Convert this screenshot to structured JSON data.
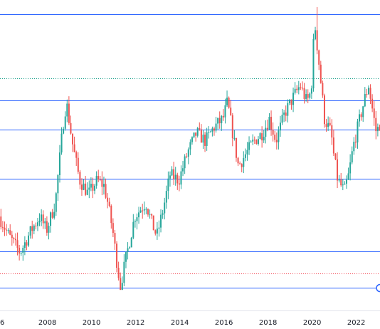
{
  "chart_data": {
    "type": "candlestick",
    "x_unit": "year",
    "x_ticks": [
      "2008",
      "2010",
      "2012",
      "2014",
      "2016",
      "2018",
      "2020",
      "2022"
    ],
    "x_edge_label": "6",
    "x_range": [
      2005.85,
      2023.2
    ],
    "y_range": [
      0,
      100
    ],
    "y_axis_labels_shown": false,
    "grid": false,
    "legend": "none",
    "colors": {
      "up": "#26a69a",
      "down": "#ef5350",
      "level": "#2962ff",
      "dotted_level": "#089981",
      "dotted_red": "#f23645"
    },
    "horizontal_levels": [
      {
        "value": 97.5,
        "style": "solid",
        "color": "#2962ff"
      },
      {
        "value": 74.5,
        "style": "dotted",
        "color": "#089981"
      },
      {
        "value": 66.5,
        "style": "solid",
        "color": "#2962ff"
      },
      {
        "value": 56.0,
        "style": "solid",
        "color": "#2962ff"
      },
      {
        "value": 38.5,
        "style": "solid",
        "color": "#2962ff"
      },
      {
        "value": 12.5,
        "style": "solid",
        "color": "#2962ff"
      },
      {
        "value": 4.5,
        "style": "dotted",
        "color": "#f23645"
      },
      {
        "value": -0.5,
        "style": "solid",
        "color": "#2962ff"
      }
    ],
    "anchors": [
      [
        2005.85,
        25
      ],
      [
        2006.3,
        18
      ],
      [
        2006.8,
        12
      ],
      [
        2007.3,
        20
      ],
      [
        2007.7,
        25
      ],
      [
        2008.0,
        20
      ],
      [
        2008.4,
        30
      ],
      [
        2008.75,
        58
      ],
      [
        2008.9,
        66
      ],
      [
        2009.2,
        50
      ],
      [
        2009.5,
        38
      ],
      [
        2009.9,
        33
      ],
      [
        2010.3,
        38
      ],
      [
        2010.6,
        36
      ],
      [
        2010.75,
        31
      ],
      [
        2011.0,
        20
      ],
      [
        2011.2,
        8
      ],
      [
        2011.35,
        0
      ],
      [
        2011.6,
        10
      ],
      [
        2012.0,
        25
      ],
      [
        2012.5,
        30
      ],
      [
        2012.8,
        22
      ],
      [
        2013.0,
        18
      ],
      [
        2013.3,
        28
      ],
      [
        2013.6,
        40
      ],
      [
        2014.0,
        38
      ],
      [
        2014.4,
        48
      ],
      [
        2014.8,
        55
      ],
      [
        2015.2,
        52
      ],
      [
        2015.6,
        57
      ],
      [
        2016.0,
        60
      ],
      [
        2016.2,
        66
      ],
      [
        2016.5,
        52
      ],
      [
        2016.7,
        43
      ],
      [
        2017.0,
        47
      ],
      [
        2017.4,
        52
      ],
      [
        2017.8,
        55
      ],
      [
        2018.1,
        60
      ],
      [
        2018.4,
        52
      ],
      [
        2018.8,
        62
      ],
      [
        2019.2,
        68
      ],
      [
        2019.5,
        72
      ],
      [
        2019.8,
        66
      ],
      [
        2020.0,
        70
      ],
      [
        2020.15,
        95
      ],
      [
        2020.35,
        80
      ],
      [
        2020.6,
        60
      ],
      [
        2020.9,
        55
      ],
      [
        2021.0,
        48
      ],
      [
        2021.2,
        38
      ],
      [
        2021.5,
        34
      ],
      [
        2021.7,
        40
      ],
      [
        2021.9,
        50
      ],
      [
        2022.2,
        60
      ],
      [
        2022.45,
        68
      ],
      [
        2022.6,
        72
      ],
      [
        2022.8,
        62
      ],
      [
        2022.95,
        55
      ],
      [
        2023.1,
        58
      ],
      [
        2023.2,
        62
      ]
    ],
    "spikes": [
      {
        "year": 2020.15,
        "high": 100
      },
      {
        "year": 2011.35,
        "low": 0
      }
    ]
  }
}
